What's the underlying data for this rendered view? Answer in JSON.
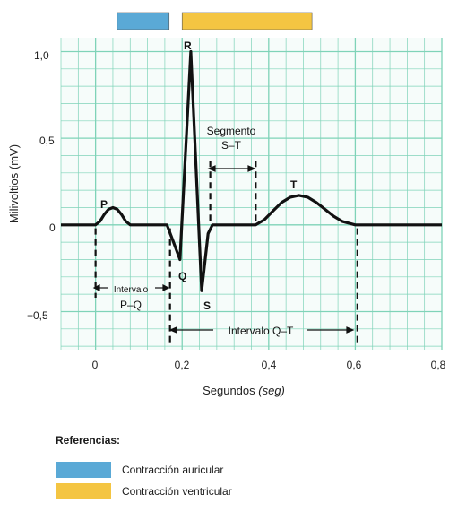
{
  "colors": {
    "grid": "#7fd3b8",
    "grid_bg": "#f6fcfa",
    "trace": "#111111",
    "atrial": "#5aa9d6",
    "ventricular": "#f4c542"
  },
  "axes": {
    "ylabel": "Milivoltios (mV)",
    "xlabel_main": "Segundos ",
    "xlabel_unit": "(seg)",
    "x_ticks": [
      "0",
      "0,2",
      "0,4",
      "0,6",
      "0,8"
    ],
    "y_ticks": [
      "1,0",
      "0,5",
      "0",
      "−0,5"
    ]
  },
  "waves": {
    "P": "P",
    "Q": "Q",
    "R": "R",
    "S": "S",
    "T": "T"
  },
  "annotations": {
    "segment_line1": "Segmento",
    "segment_line2": "S–T",
    "interval_pq_line1": "Intervalo",
    "interval_pq_line2": "P–Q",
    "interval_qt": "Intervalo Q–T"
  },
  "legend": {
    "title": "Referencias:",
    "items": [
      {
        "label": "Contracción auricular",
        "color": "#5aa9d6"
      },
      {
        "label": "Contracción ventricular",
        "color": "#f4c542"
      }
    ]
  },
  "chart_data": {
    "type": "line",
    "xlim": [
      -0.08,
      0.8
    ],
    "ylim": [
      -0.72,
      1.08
    ],
    "phases": [
      {
        "name": "Contracción auricular",
        "x": [
          0.05,
          0.17
        ]
      },
      {
        "name": "Contracción ventricular",
        "x": [
          0.2,
          0.5
        ]
      }
    ],
    "ecg_points": [
      [
        -0.08,
        0
      ],
      [
        0.0,
        0
      ],
      [
        0.01,
        0.02
      ],
      [
        0.02,
        0.06
      ],
      [
        0.03,
        0.09
      ],
      [
        0.04,
        0.1
      ],
      [
        0.05,
        0.09
      ],
      [
        0.06,
        0.06
      ],
      [
        0.07,
        0.02
      ],
      [
        0.08,
        0
      ],
      [
        0.165,
        0
      ],
      [
        0.18,
        -0.1
      ],
      [
        0.195,
        -0.2
      ],
      [
        0.22,
        1.0
      ],
      [
        0.245,
        -0.38
      ],
      [
        0.26,
        -0.05
      ],
      [
        0.27,
        0
      ],
      [
        0.37,
        0
      ],
      [
        0.39,
        0.03
      ],
      [
        0.41,
        0.08
      ],
      [
        0.43,
        0.13
      ],
      [
        0.45,
        0.16
      ],
      [
        0.47,
        0.17
      ],
      [
        0.49,
        0.16
      ],
      [
        0.51,
        0.13
      ],
      [
        0.53,
        0.09
      ],
      [
        0.55,
        0.05
      ],
      [
        0.57,
        0.02
      ],
      [
        0.6,
        0
      ],
      [
        0.8,
        0
      ]
    ]
  }
}
